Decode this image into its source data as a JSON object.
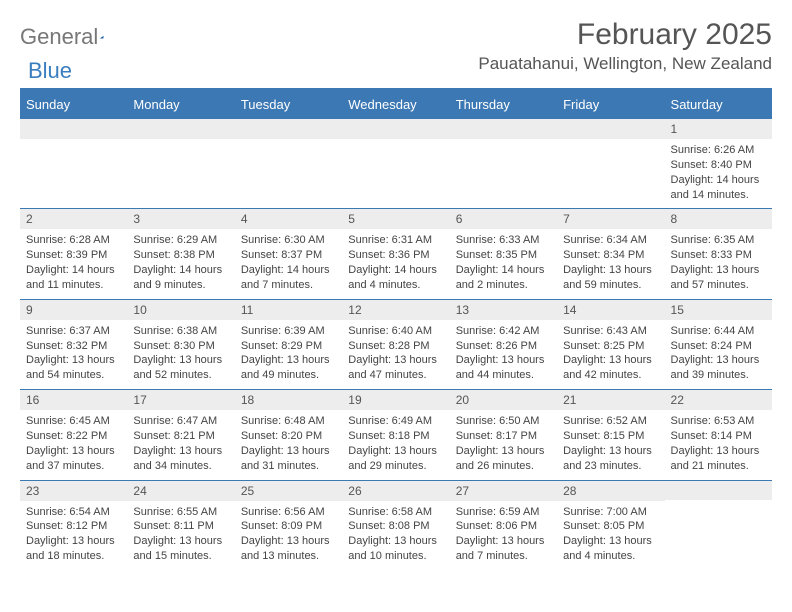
{
  "brand": {
    "part1": "General",
    "part2": "Blue"
  },
  "title": "February 2025",
  "location": "Pauatahanui, Wellington, New Zealand",
  "colors": {
    "header_bar": "#3c78b4",
    "rule": "#3c78b4",
    "day_bg": "#ededed",
    "text": "#444444",
    "title_text": "#555555"
  },
  "weekdays": [
    "Sunday",
    "Monday",
    "Tuesday",
    "Wednesday",
    "Thursday",
    "Friday",
    "Saturday"
  ],
  "weeks": [
    [
      {
        "n": "",
        "sr": "",
        "ss": "",
        "dl": ""
      },
      {
        "n": "",
        "sr": "",
        "ss": "",
        "dl": ""
      },
      {
        "n": "",
        "sr": "",
        "ss": "",
        "dl": ""
      },
      {
        "n": "",
        "sr": "",
        "ss": "",
        "dl": ""
      },
      {
        "n": "",
        "sr": "",
        "ss": "",
        "dl": ""
      },
      {
        "n": "",
        "sr": "",
        "ss": "",
        "dl": ""
      },
      {
        "n": "1",
        "sr": "Sunrise: 6:26 AM",
        "ss": "Sunset: 8:40 PM",
        "dl": "Daylight: 14 hours and 14 minutes."
      }
    ],
    [
      {
        "n": "2",
        "sr": "Sunrise: 6:28 AM",
        "ss": "Sunset: 8:39 PM",
        "dl": "Daylight: 14 hours and 11 minutes."
      },
      {
        "n": "3",
        "sr": "Sunrise: 6:29 AM",
        "ss": "Sunset: 8:38 PM",
        "dl": "Daylight: 14 hours and 9 minutes."
      },
      {
        "n": "4",
        "sr": "Sunrise: 6:30 AM",
        "ss": "Sunset: 8:37 PM",
        "dl": "Daylight: 14 hours and 7 minutes."
      },
      {
        "n": "5",
        "sr": "Sunrise: 6:31 AM",
        "ss": "Sunset: 8:36 PM",
        "dl": "Daylight: 14 hours and 4 minutes."
      },
      {
        "n": "6",
        "sr": "Sunrise: 6:33 AM",
        "ss": "Sunset: 8:35 PM",
        "dl": "Daylight: 14 hours and 2 minutes."
      },
      {
        "n": "7",
        "sr": "Sunrise: 6:34 AM",
        "ss": "Sunset: 8:34 PM",
        "dl": "Daylight: 13 hours and 59 minutes."
      },
      {
        "n": "8",
        "sr": "Sunrise: 6:35 AM",
        "ss": "Sunset: 8:33 PM",
        "dl": "Daylight: 13 hours and 57 minutes."
      }
    ],
    [
      {
        "n": "9",
        "sr": "Sunrise: 6:37 AM",
        "ss": "Sunset: 8:32 PM",
        "dl": "Daylight: 13 hours and 54 minutes."
      },
      {
        "n": "10",
        "sr": "Sunrise: 6:38 AM",
        "ss": "Sunset: 8:30 PM",
        "dl": "Daylight: 13 hours and 52 minutes."
      },
      {
        "n": "11",
        "sr": "Sunrise: 6:39 AM",
        "ss": "Sunset: 8:29 PM",
        "dl": "Daylight: 13 hours and 49 minutes."
      },
      {
        "n": "12",
        "sr": "Sunrise: 6:40 AM",
        "ss": "Sunset: 8:28 PM",
        "dl": "Daylight: 13 hours and 47 minutes."
      },
      {
        "n": "13",
        "sr": "Sunrise: 6:42 AM",
        "ss": "Sunset: 8:26 PM",
        "dl": "Daylight: 13 hours and 44 minutes."
      },
      {
        "n": "14",
        "sr": "Sunrise: 6:43 AM",
        "ss": "Sunset: 8:25 PM",
        "dl": "Daylight: 13 hours and 42 minutes."
      },
      {
        "n": "15",
        "sr": "Sunrise: 6:44 AM",
        "ss": "Sunset: 8:24 PM",
        "dl": "Daylight: 13 hours and 39 minutes."
      }
    ],
    [
      {
        "n": "16",
        "sr": "Sunrise: 6:45 AM",
        "ss": "Sunset: 8:22 PM",
        "dl": "Daylight: 13 hours and 37 minutes."
      },
      {
        "n": "17",
        "sr": "Sunrise: 6:47 AM",
        "ss": "Sunset: 8:21 PM",
        "dl": "Daylight: 13 hours and 34 minutes."
      },
      {
        "n": "18",
        "sr": "Sunrise: 6:48 AM",
        "ss": "Sunset: 8:20 PM",
        "dl": "Daylight: 13 hours and 31 minutes."
      },
      {
        "n": "19",
        "sr": "Sunrise: 6:49 AM",
        "ss": "Sunset: 8:18 PM",
        "dl": "Daylight: 13 hours and 29 minutes."
      },
      {
        "n": "20",
        "sr": "Sunrise: 6:50 AM",
        "ss": "Sunset: 8:17 PM",
        "dl": "Daylight: 13 hours and 26 minutes."
      },
      {
        "n": "21",
        "sr": "Sunrise: 6:52 AM",
        "ss": "Sunset: 8:15 PM",
        "dl": "Daylight: 13 hours and 23 minutes."
      },
      {
        "n": "22",
        "sr": "Sunrise: 6:53 AM",
        "ss": "Sunset: 8:14 PM",
        "dl": "Daylight: 13 hours and 21 minutes."
      }
    ],
    [
      {
        "n": "23",
        "sr": "Sunrise: 6:54 AM",
        "ss": "Sunset: 8:12 PM",
        "dl": "Daylight: 13 hours and 18 minutes."
      },
      {
        "n": "24",
        "sr": "Sunrise: 6:55 AM",
        "ss": "Sunset: 8:11 PM",
        "dl": "Daylight: 13 hours and 15 minutes."
      },
      {
        "n": "25",
        "sr": "Sunrise: 6:56 AM",
        "ss": "Sunset: 8:09 PM",
        "dl": "Daylight: 13 hours and 13 minutes."
      },
      {
        "n": "26",
        "sr": "Sunrise: 6:58 AM",
        "ss": "Sunset: 8:08 PM",
        "dl": "Daylight: 13 hours and 10 minutes."
      },
      {
        "n": "27",
        "sr": "Sunrise: 6:59 AM",
        "ss": "Sunset: 8:06 PM",
        "dl": "Daylight: 13 hours and 7 minutes."
      },
      {
        "n": "28",
        "sr": "Sunrise: 7:00 AM",
        "ss": "Sunset: 8:05 PM",
        "dl": "Daylight: 13 hours and 4 minutes."
      },
      {
        "n": "",
        "sr": "",
        "ss": "",
        "dl": ""
      }
    ]
  ]
}
